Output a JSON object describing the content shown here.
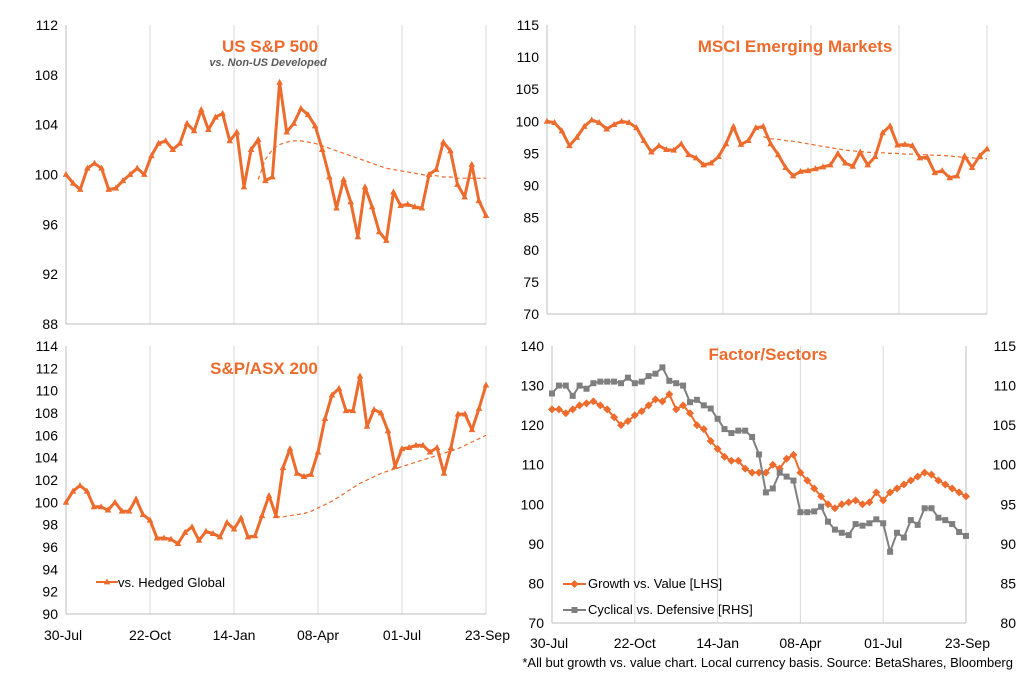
{
  "colors": {
    "orange": "#ED6B2D",
    "gray": "#7F7F7F",
    "grid": "#D9D9D9",
    "axis": "#BFBFBF"
  },
  "footnote": "*All but growth vs. value chart. Local currency basis.  Source: BetaShares, Bloomberg",
  "chart_data": [
    {
      "type": "line",
      "id": "sp500",
      "title": "US S&P 500",
      "subtitle": "vs. Non-US Developed",
      "xlabel": "",
      "ylabel": "",
      "ylim": [
        88,
        112
      ],
      "yticks": [
        "88",
        "92",
        "96",
        "100",
        "104",
        "108",
        "112"
      ],
      "x_tick_labels": [],
      "series": [
        {
          "name": "vs. Non-US Developed",
          "style": "marker",
          "values": [
            100,
            99.3,
            98.8,
            100.5,
            100.9,
            100.5,
            98.8,
            98.9,
            99.5,
            100,
            100.5,
            100,
            101.5,
            102.5,
            102.7,
            102,
            102.5,
            104.1,
            103.5,
            105.2,
            103.6,
            104.6,
            104.9,
            102.7,
            103.4,
            99,
            102,
            102.8,
            99.5,
            99.8,
            107.4,
            103.4,
            104.1,
            105.3,
            104.8,
            103.9,
            102,
            99.8,
            97.3,
            99.6,
            97.8,
            95,
            99,
            97.4,
            95.4,
            94.7,
            98.6,
            97.5,
            97.6,
            97.4,
            97.3,
            100,
            100.4,
            102.6,
            101.9,
            99.2,
            98.2,
            100.8,
            97.9,
            96.7
          ]
        },
        {
          "name": "trend",
          "style": "dashed",
          "start_index": 27,
          "values": [
            99.6,
            101.2,
            102,
            102.4,
            102.6,
            102.7,
            102.7,
            102.6,
            102.5,
            102.3,
            102.1,
            101.9,
            101.7,
            101.5,
            101.3,
            101.1,
            100.9,
            100.7,
            100.5,
            100.4,
            100.3,
            100.2,
            100.1,
            100,
            99.9,
            99.9,
            99.8,
            99.8,
            99.7,
            99.7,
            99.7,
            99.7,
            99.7
          ]
        }
      ]
    },
    {
      "type": "line",
      "id": "msci_em",
      "title": "MSCI Emerging Markets",
      "xlabel": "",
      "ylabel": "",
      "ylim": [
        70,
        115
      ],
      "yticks": [
        "70",
        "75",
        "80",
        "85",
        "90",
        "95",
        "100",
        "105",
        "110",
        "115"
      ],
      "x_tick_labels": [],
      "series": [
        {
          "name": "MSCI Emerging Markets",
          "style": "marker",
          "values": [
            100,
            99.8,
            98.5,
            96.2,
            97.5,
            99.2,
            100.2,
            99.8,
            98.8,
            99.5,
            100,
            99.8,
            99,
            97,
            95.2,
            96.2,
            95.6,
            95.5,
            96.5,
            94.8,
            94.3,
            93.2,
            93.5,
            94.5,
            96.5,
            99.2,
            96.4,
            97,
            99,
            99.2,
            96.5,
            94.8,
            92.8,
            91.5,
            92.2,
            92.3,
            92.6,
            92.9,
            93.2,
            95,
            93.5,
            93,
            95.2,
            93.2,
            94.5,
            98.2,
            99.3,
            96.3,
            96.4,
            96.2,
            94.3,
            94.4,
            92,
            92.3,
            91.2,
            91.5,
            94.6,
            92.8,
            94.6,
            95.7
          ]
        },
        {
          "name": "trend",
          "style": "dashed",
          "start_index": 29,
          "values": [
            97.6,
            97.3,
            97.2,
            97,
            96.9,
            96.7,
            96.5,
            96.3,
            96.1,
            95.9,
            95.7,
            95.5,
            95.4,
            95.3,
            95.2,
            95.1,
            95.1,
            95,
            95,
            94.9,
            94.9,
            94.8,
            94.8,
            94.7,
            94.7,
            94.6,
            94.5,
            94.4,
            94.3,
            94.2,
            94.2
          ]
        }
      ]
    },
    {
      "type": "line",
      "id": "asx200",
      "title": "S&P/ASX 200",
      "xlabel": "",
      "ylabel": "",
      "ylim": [
        90,
        114
      ],
      "yticks": [
        "90",
        "92",
        "94",
        "96",
        "98",
        "100",
        "102",
        "104",
        "106",
        "108",
        "110",
        "112",
        "114"
      ],
      "x_tick_labels": [
        "30-Jul",
        "22-Oct",
        "14-Jan",
        "08-Apr",
        "01-Jul",
        "23-Sep"
      ],
      "legend": [
        "vs. Hedged Global"
      ],
      "series": [
        {
          "name": "vs. Hedged Global",
          "style": "marker",
          "values": [
            100,
            101,
            101.5,
            101,
            99.6,
            99.6,
            99.3,
            100,
            99.2,
            99.2,
            100.3,
            98.9,
            98.4,
            96.8,
            96.8,
            96.7,
            96.3,
            97.3,
            97.8,
            96.6,
            97.4,
            97.2,
            96.9,
            98.2,
            97.6,
            98.6,
            96.9,
            97,
            98.8,
            100.6,
            98.8,
            103.1,
            104.8,
            102.6,
            102.3,
            102.5,
            104.5,
            107.5,
            109.6,
            110.2,
            108.2,
            108.2,
            111.3,
            106.8,
            108.3,
            108,
            106.4,
            103.2,
            104.8,
            104.9,
            105.1,
            105.1,
            104.5,
            104.9,
            102.6,
            104.9,
            107.9,
            107.9,
            106.5,
            108.4,
            110.5
          ]
        },
        {
          "name": "trend",
          "style": "dashed",
          "start_index": 30,
          "values": [
            98.7,
            98.7,
            98.8,
            98.9,
            99,
            99.2,
            99.5,
            99.8,
            100.1,
            100.5,
            100.9,
            101.3,
            101.7,
            102,
            102.3,
            102.6,
            102.8,
            103,
            103.2,
            103.4,
            103.6,
            103.8,
            104,
            104.2,
            104.4,
            104.6,
            104.8,
            105.1,
            105.4,
            105.7,
            106
          ]
        }
      ]
    },
    {
      "type": "line",
      "id": "factor",
      "title": "Factor/Sectors",
      "xlabel": "",
      "ylabel": "",
      "ylim": [
        70,
        140
      ],
      "ylim_right": [
        80,
        115
      ],
      "yticks": [
        "70",
        "80",
        "90",
        "100",
        "110",
        "120",
        "130",
        "140"
      ],
      "yticks_right": [
        "80",
        "85",
        "90",
        "95",
        "100",
        "105",
        "110",
        "115"
      ],
      "x_tick_labels": [
        "30-Jul",
        "22-Oct",
        "14-Jan",
        "08-Apr",
        "01-Jul",
        "23-Sep"
      ],
      "legend": [
        "Growth vs. Value [LHS]",
        "Cyclical vs. Defensive [RHS]"
      ],
      "series": [
        {
          "name": "Growth vs. Value [LHS]",
          "axis": "left",
          "values": [
            124,
            124,
            123,
            124,
            125,
            125.5,
            126,
            125,
            124,
            122,
            120,
            121,
            122.5,
            123.5,
            125,
            126.5,
            126,
            127.8,
            124,
            125,
            123,
            120,
            119,
            116,
            114,
            112,
            111,
            111,
            109,
            108,
            108,
            108,
            110,
            109,
            111.5,
            112.5,
            108,
            106,
            104,
            102,
            100,
            99,
            100,
            100.5,
            101,
            100,
            100.5,
            103,
            101,
            103,
            104,
            105,
            106,
            107,
            108,
            107.5,
            106,
            105,
            104,
            103,
            102
          ]
        },
        {
          "name": "Cyclical vs. Defensive [RHS]",
          "axis": "right",
          "values": [
            109,
            110,
            110,
            108.7,
            110,
            109.6,
            110.3,
            110.5,
            110.5,
            110.5,
            110.3,
            111,
            110.3,
            110.5,
            111.2,
            111.5,
            112.3,
            110.6,
            110.3,
            110,
            107.9,
            108.2,
            107.5,
            107.1,
            105.8,
            104.5,
            104,
            104.3,
            104.3,
            103.5,
            101.3,
            96.5,
            97,
            99,
            98.5,
            98,
            94,
            94,
            94.1,
            94.7,
            92.8,
            91.8,
            91.4,
            91.1,
            92.5,
            92.3,
            92.6,
            93.1,
            92.6,
            89,
            91.4,
            90.8,
            93,
            92.4,
            94.5,
            94.5,
            93.3,
            93,
            92.5,
            91.5,
            91
          ]
        }
      ]
    }
  ]
}
